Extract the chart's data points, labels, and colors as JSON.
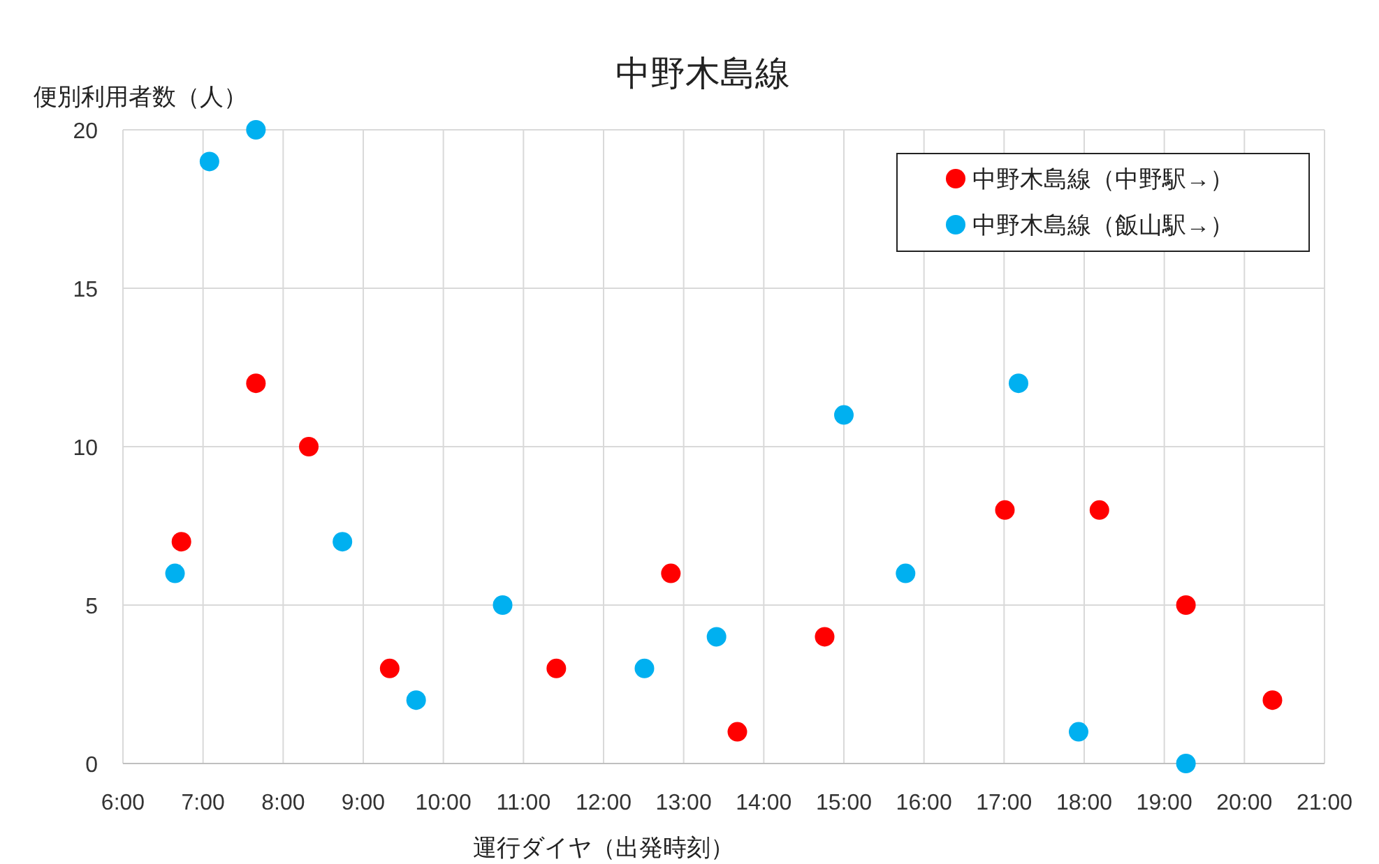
{
  "chart_data": {
    "type": "scatter",
    "title": "中野木島線",
    "xlabel": "運行ダイヤ（出発時刻）",
    "ylabel": "便別利用者数（人）",
    "series": [
      {
        "name": "中野木島線（中野駅→）",
        "color": "#ff0000",
        "x": [
          6.73,
          7.66,
          8.32,
          9.33,
          11.41,
          12.84,
          13.67,
          14.76,
          17.01,
          18.19,
          19.27,
          20.35
        ],
        "values": [
          7,
          12,
          10,
          3,
          3,
          6,
          1,
          4,
          8,
          8,
          5,
          2
        ]
      },
      {
        "name": "中野木島線（飯山駅→）",
        "color": "#00b0f0",
        "x": [
          6.65,
          7.08,
          7.66,
          8.74,
          9.66,
          10.74,
          12.51,
          13.41,
          15.0,
          15.77,
          17.18,
          17.93,
          19.27
        ],
        "values": [
          6,
          19,
          20,
          7,
          2,
          5,
          3,
          4,
          11,
          6,
          12,
          1,
          0
        ]
      }
    ],
    "xlim": [
      6,
      21
    ],
    "ylim": [
      0,
      20
    ],
    "xticks": [
      {
        "value": 6,
        "label": "6:00"
      },
      {
        "value": 7,
        "label": "7:00"
      },
      {
        "value": 8,
        "label": "8:00"
      },
      {
        "value": 9,
        "label": "9:00"
      },
      {
        "value": 10,
        "label": "10:00"
      },
      {
        "value": 11,
        "label": "11:00"
      },
      {
        "value": 12,
        "label": "12:00"
      },
      {
        "value": 13,
        "label": "13:00"
      },
      {
        "value": 14,
        "label": "14:00"
      },
      {
        "value": 15,
        "label": "15:00"
      },
      {
        "value": 16,
        "label": "16:00"
      },
      {
        "value": 17,
        "label": "17:00"
      },
      {
        "value": 18,
        "label": "18:00"
      },
      {
        "value": 19,
        "label": "19:00"
      },
      {
        "value": 20,
        "label": "20:00"
      },
      {
        "value": 21,
        "label": "21:00"
      }
    ],
    "yticks": [
      0,
      5,
      10,
      15,
      20
    ],
    "grid": true,
    "legend": "top right",
    "marker": "circle"
  }
}
